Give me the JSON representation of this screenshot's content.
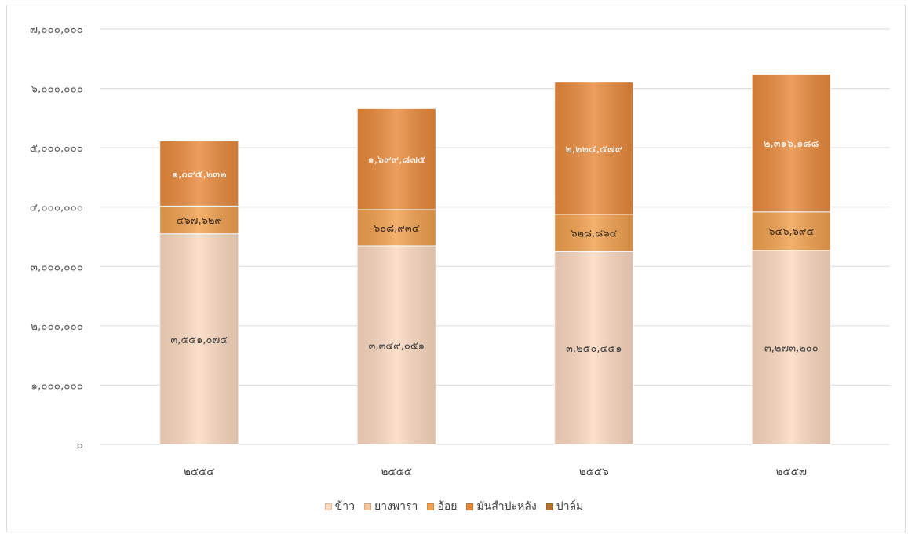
{
  "chart_data": {
    "type": "bar",
    "stacked": true,
    "categories": [
      "๒๕๕๔",
      "๒๕๕๕",
      "๒๕๕๖",
      "๒๕๕๗"
    ],
    "series": [
      {
        "name": "ข้าว",
        "color": "#fbd9c0",
        "values": [
          3551075,
          3349051,
          3250451,
          3273200
        ],
        "labels": [
          "๓,๕๕๑,๐๗๕",
          "๓,๓๔๙,๐๕๑",
          "๓,๒๕๐,๔๕๑",
          "๓,๒๗๓,๒๐๐"
        ]
      },
      {
        "name": "ยางพารา",
        "color": "#f6c79c",
        "values": [
          0,
          0,
          0,
          0
        ],
        "labels": [
          "",
          "",
          "",
          ""
        ]
      },
      {
        "name": "อ้อย",
        "color": "#f0a04e",
        "values": [
          467629,
          608934,
          628864,
          646695
        ],
        "labels": [
          "๔๖๗,๖๒๙",
          "๖๐๘,๙๓๔",
          "๖๒๘,๘๖๔",
          "๖๔๖,๖๙๕"
        ]
      },
      {
        "name": "มันสำปะหลัง",
        "color": "#e88a3c",
        "values": [
          1095232,
          1699875,
          2224579,
          2316188
        ],
        "labels": [
          "๑,๐๙๕,๒๓๒",
          "๑,๖๙๙,๘๗๕",
          "๒,๒๒๔,๕๗๙",
          "๒,๓๑๖,๑๘๘"
        ]
      },
      {
        "name": "ปาล์ม",
        "color": "#b8742f",
        "values": [
          0,
          0,
          0,
          0
        ],
        "labels": [
          "",
          "",
          "",
          ""
        ]
      }
    ],
    "ylim": [
      0,
      7000000
    ],
    "yticks": [
      {
        "value": 0,
        "label": "๐"
      },
      {
        "value": 1000000,
        "label": "๑,๐๐๐,๐๐๐"
      },
      {
        "value": 2000000,
        "label": "๒,๐๐๐,๐๐๐"
      },
      {
        "value": 3000000,
        "label": "๓,๐๐๐,๐๐๐"
      },
      {
        "value": 4000000,
        "label": "๔,๐๐๐,๐๐๐"
      },
      {
        "value": 5000000,
        "label": "๕,๐๐๐,๐๐๐"
      },
      {
        "value": 6000000,
        "label": "๖,๐๐๐,๐๐๐"
      },
      {
        "value": 7000000,
        "label": "๗,๐๐๐,๐๐๐"
      }
    ],
    "grid": true,
    "legend_position": "bottom",
    "colors": {
      "rice_label": "#404040",
      "sugarcane_label": "#3a2a1a",
      "cassava_label": "#ffffff",
      "grid": "#d9d9d9"
    }
  }
}
